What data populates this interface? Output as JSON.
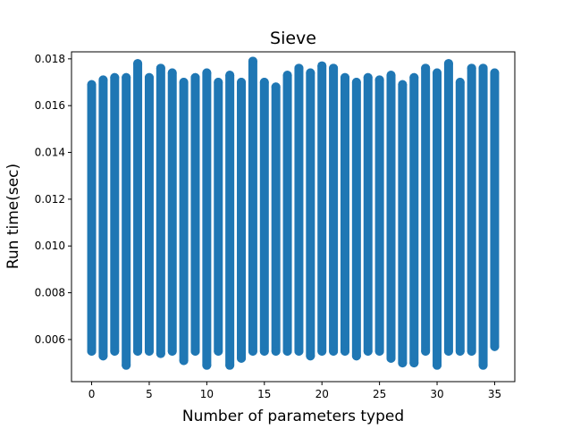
{
  "chart_data": {
    "type": "scatter",
    "title": "Sieve",
    "xlabel": "Number of parameters typed",
    "ylabel": "Run time(sec)",
    "xlim": [
      -1.75,
      36.75
    ],
    "ylim": [
      0.0042,
      0.0183
    ],
    "xticks": [
      0,
      5,
      10,
      15,
      20,
      25,
      30,
      35
    ],
    "xtick_labels": [
      "0",
      "5",
      "10",
      "15",
      "20",
      "25",
      "30",
      "35"
    ],
    "yticks": [
      0.006,
      0.008,
      0.01,
      0.012,
      0.014,
      0.016,
      0.018
    ],
    "ytick_labels": [
      "0.006",
      "0.008",
      "0.010",
      "0.012",
      "0.014",
      "0.016",
      "0.018"
    ],
    "grid": false,
    "marker_color": "#1f77b4",
    "x": [
      0,
      1,
      2,
      3,
      4,
      5,
      6,
      7,
      8,
      9,
      10,
      11,
      12,
      13,
      14,
      15,
      16,
      17,
      18,
      19,
      20,
      21,
      22,
      23,
      24,
      25,
      26,
      27,
      28,
      29,
      30,
      31,
      32,
      33,
      34,
      35
    ],
    "y_max": [
      0.0169,
      0.0171,
      0.0172,
      0.0172,
      0.0178,
      0.0172,
      0.0176,
      0.0174,
      0.017,
      0.0172,
      0.0174,
      0.017,
      0.0173,
      0.017,
      0.0179,
      0.017,
      0.0168,
      0.0173,
      0.0176,
      0.0174,
      0.0177,
      0.0176,
      0.0172,
      0.017,
      0.0172,
      0.0171,
      0.0173,
      0.0169,
      0.0172,
      0.0176,
      0.0174,
      0.0178,
      0.017,
      0.0176,
      0.0176,
      0.0174
    ],
    "y_min": [
      0.0055,
      0.0053,
      0.0055,
      0.0049,
      0.0055,
      0.0055,
      0.0054,
      0.0055,
      0.0051,
      0.0055,
      0.0049,
      0.0055,
      0.0049,
      0.0052,
      0.0055,
      0.0055,
      0.0055,
      0.0055,
      0.0055,
      0.0053,
      0.0055,
      0.0055,
      0.0055,
      0.0053,
      0.0055,
      0.0055,
      0.0052,
      0.005,
      0.005,
      0.0055,
      0.0049,
      0.0055,
      0.0055,
      0.0055,
      0.0049,
      0.0057
    ]
  }
}
